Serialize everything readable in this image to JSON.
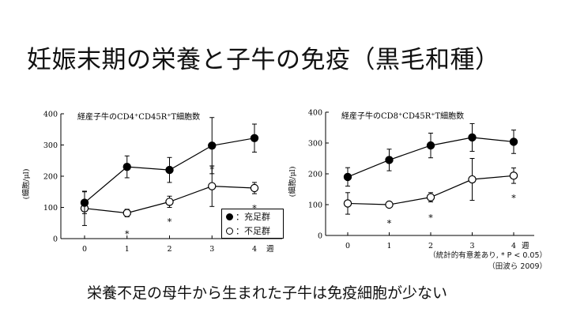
{
  "slide": {
    "title": "妊娠末期の栄養と子牛の免疫（黒毛和種）",
    "caption": "栄養不足の母牛から生まれた子牛は免疫細胞が少ない",
    "stat_note": "（統計的有意差あり, * P < 0.05）",
    "citation": "（田波ら 2009）"
  },
  "legend": {
    "items": [
      {
        "marker": "filled-circle",
        "label": "：充足群"
      },
      {
        "marker": "open-circle",
        "label": "：不足群"
      }
    ]
  },
  "chart_data": [
    {
      "type": "line",
      "title": "経産子牛のCD4⁺CD45R⁺T細胞数",
      "xlabel": "週",
      "ylabel": "(細胞/μl)",
      "x": [
        0,
        1,
        2,
        3,
        4
      ],
      "x_ticks": [
        "0",
        "1",
        "2",
        "3",
        "4"
      ],
      "ylim": [
        0,
        400
      ],
      "y_ticks": [
        "0",
        "100",
        "200",
        "300",
        "400"
      ],
      "grid": false,
      "series": [
        {
          "style": "filled",
          "values": [
            115,
            230,
            220,
            298,
            322
          ],
          "errors": [
            35,
            35,
            40,
            90,
            45
          ]
        },
        {
          "style": "open",
          "values": [
            97,
            82,
            118,
            168,
            162
          ],
          "errors": [
            55,
            12,
            18,
            65,
            18
          ]
        }
      ],
      "significance_marks": [
        {
          "x": 1,
          "y": 15,
          "text": "*"
        },
        {
          "x": 2,
          "y": 55,
          "text": "*"
        },
        {
          "x": 3,
          "y": 222,
          "text": "*"
        },
        {
          "x": 4,
          "y": 98,
          "text": "*"
        }
      ]
    },
    {
      "type": "line",
      "title": "経産子牛のCD8⁺CD45R⁺T細胞数",
      "xlabel": "週",
      "ylabel": "(細胞/μl)",
      "x": [
        0,
        1,
        2,
        3,
        4
      ],
      "x_ticks": [
        "0",
        "1",
        "2",
        "3",
        "4"
      ],
      "ylim": [
        0,
        400
      ],
      "y_ticks": [
        "0",
        "100",
        "200",
        "300",
        "400"
      ],
      "grid": false,
      "series": [
        {
          "style": "filled",
          "values": [
            190,
            245,
            292,
            318,
            304
          ],
          "errors": [
            30,
            35,
            40,
            45,
            38
          ]
        },
        {
          "style": "open",
          "values": [
            104,
            100,
            124,
            182,
            194
          ],
          "errors": [
            35,
            8,
            15,
            68,
            25
          ]
        }
      ],
      "significance_marks": [
        {
          "x": 1,
          "y": 40,
          "text": "*"
        },
        {
          "x": 2,
          "y": 58,
          "text": "*"
        },
        {
          "x": 4,
          "y": 122,
          "text": "*"
        }
      ]
    }
  ]
}
